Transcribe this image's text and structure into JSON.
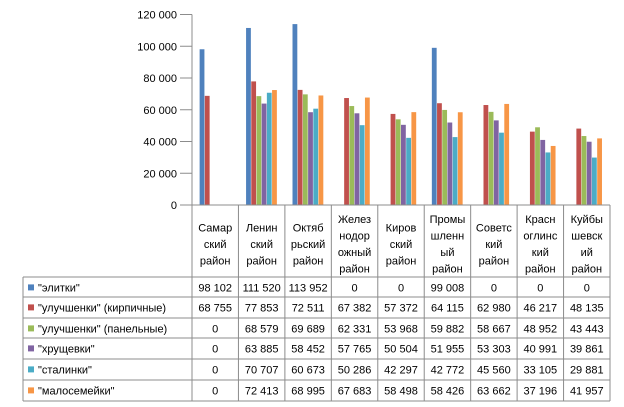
{
  "chart_data": {
    "type": "bar",
    "title": "",
    "xlabel": "",
    "ylabel": "",
    "ylim": [
      0,
      120000
    ],
    "y_ticks": [
      0,
      20000,
      40000,
      60000,
      80000,
      100000,
      120000
    ],
    "y_tick_labels": [
      "0",
      "20 000",
      "40 000",
      "60 000",
      "80 000",
      "100 000",
      "120 000"
    ],
    "grid": false,
    "legend_placement": "data-table",
    "categories": [
      "Самарский район",
      "Ленинский район",
      "Октябрьский район",
      "Железнодорожный район",
      "Кировский район",
      "Промышленный район",
      "Советский район",
      "Красноглинский район",
      "Куйбышевский район"
    ],
    "category_label_lines": [
      [
        "Самар",
        "ский",
        "район"
      ],
      [
        "Ленин",
        "ский",
        "район"
      ],
      [
        "Октяб",
        "рьский",
        "район"
      ],
      [
        "Желез",
        "нодор",
        "ожный",
        "район"
      ],
      [
        "Киров",
        "ский",
        "район"
      ],
      [
        "Промы",
        "шленн",
        "ый",
        "район"
      ],
      [
        "Советс",
        "кий",
        "район"
      ],
      [
        "Красн",
        "оглинс",
        "кий",
        "район"
      ],
      [
        "Куйбы",
        "шевск",
        "ий",
        "район"
      ]
    ],
    "series": [
      {
        "name": "\"элитки\"",
        "color": "#4F81BD",
        "values": [
          98102,
          111520,
          113952,
          0,
          0,
          99008,
          0,
          0,
          0
        ],
        "labels": [
          "98 102",
          "111 520",
          "113 952",
          "0",
          "0",
          "99 008",
          "0",
          "0",
          "0"
        ]
      },
      {
        "name": "\"улучшенки\"  (кирпичные)",
        "color": "#C0504D",
        "values": [
          68755,
          77853,
          72511,
          67382,
          57372,
          64115,
          62980,
          46217,
          48135
        ],
        "labels": [
          "68 755",
          "77 853",
          "72 511",
          "67 382",
          "57 372",
          "64 115",
          "62 980",
          "46 217",
          "48 135"
        ]
      },
      {
        "name": "\"улучшенки\"  (панельные)",
        "color": "#9BBB59",
        "values": [
          0,
          68579,
          69689,
          62331,
          53968,
          59882,
          58667,
          48952,
          43443
        ],
        "labels": [
          "0",
          "68 579",
          "69 689",
          "62 331",
          "53 968",
          "59 882",
          "58 667",
          "48 952",
          "43 443"
        ]
      },
      {
        "name": "\"хрущевки\"",
        "color": "#8064A2",
        "values": [
          0,
          63885,
          58452,
          57765,
          50504,
          51955,
          53303,
          40991,
          39861
        ],
        "labels": [
          "0",
          "63 885",
          "58 452",
          "57 765",
          "50 504",
          "51 955",
          "53 303",
          "40 991",
          "39 861"
        ]
      },
      {
        "name": "\"сталинки\"",
        "color": "#4BACC6",
        "values": [
          0,
          70707,
          60673,
          50286,
          42297,
          42772,
          45560,
          33105,
          29881
        ],
        "labels": [
          "0",
          "70 707",
          "60 673",
          "50 286",
          "42 297",
          "42 772",
          "45 560",
          "33 105",
          "29 881"
        ]
      },
      {
        "name": "\"малосемейки\"",
        "color": "#F79646",
        "values": [
          0,
          72413,
          68995,
          67683,
          58498,
          58426,
          63662,
          37196,
          41957
        ],
        "labels": [
          "0",
          "72 413",
          "68 995",
          "67 683",
          "58 498",
          "58 426",
          "63 662",
          "37 196",
          "41 957"
        ]
      }
    ]
  }
}
